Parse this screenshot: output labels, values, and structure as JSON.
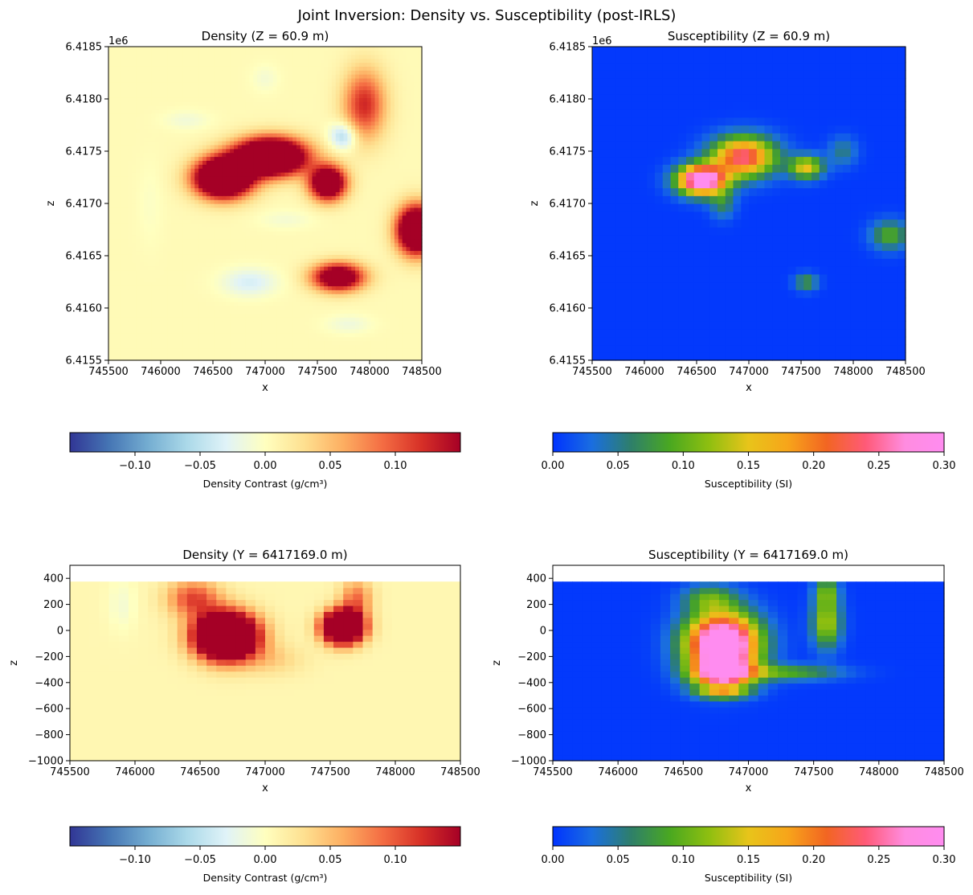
{
  "figure": {
    "suptitle": "Joint Inversion: Density vs. Susceptibility (post-IRLS)"
  },
  "colors": {
    "density_cmap": [
      "#313695",
      "#4575b4",
      "#74add1",
      "#abd9e9",
      "#e0f3f8",
      "#ffffbf",
      "#fee090",
      "#fdae61",
      "#f46d43",
      "#d73027",
      "#a50026"
    ],
    "susceptibility_cmap": [
      "#0033ff",
      "#1a6ee0",
      "#2e7f6a",
      "#4aa820",
      "#8fbf10",
      "#e8c41a",
      "#f7a51a",
      "#f26522",
      "#ff5a78",
      "#ff8ce0",
      "#ff8cf0"
    ],
    "background_empty": "#ffffff"
  },
  "chart_data": [
    {
      "id": "density-plan",
      "type": "heatmap",
      "title": "Density (Z = 60.9 m)",
      "xlabel": "x",
      "ylabel": "z",
      "offset_label": "1e6",
      "xlim": [
        745500,
        748500
      ],
      "ylim": [
        6415500,
        6418500
      ],
      "xticks": [
        "745500",
        "746000",
        "746500",
        "747000",
        "747500",
        "748000",
        "748500"
      ],
      "yticks": [
        "6.4155",
        "6.4160",
        "6.4165",
        "6.4170",
        "6.4175",
        "6.4180",
        "6.4185"
      ],
      "colormap": "density",
      "clim": [
        -0.15,
        0.15
      ],
      "grid": [
        80,
        80
      ],
      "background_value": 0.005,
      "anomalies": [
        {
          "x": 746600,
          "y": 6417250,
          "sx": 260,
          "sy": 180,
          "value": 0.35
        },
        {
          "x": 747050,
          "y": 6417450,
          "sx": 330,
          "sy": 170,
          "value": 0.35
        },
        {
          "x": 747600,
          "y": 6417200,
          "sx": 170,
          "sy": 160,
          "value": 0.25
        },
        {
          "x": 747950,
          "y": 6417950,
          "sx": 200,
          "sy": 330,
          "value": 0.12
        },
        {
          "x": 747750,
          "y": 6417650,
          "sx": 130,
          "sy": 130,
          "value": -0.07
        },
        {
          "x": 748450,
          "y": 6416750,
          "sx": 180,
          "sy": 220,
          "value": 0.3
        },
        {
          "x": 747700,
          "y": 6416300,
          "sx": 240,
          "sy": 130,
          "value": 0.22
        },
        {
          "x": 746850,
          "y": 6416250,
          "sx": 260,
          "sy": 130,
          "value": -0.04
        },
        {
          "x": 747800,
          "y": 6415850,
          "sx": 220,
          "sy": 90,
          "value": -0.02
        },
        {
          "x": 746250,
          "y": 6417800,
          "sx": 220,
          "sy": 90,
          "value": -0.018
        },
        {
          "x": 747000,
          "y": 6418200,
          "sx": 130,
          "sy": 130,
          "value": -0.015
        },
        {
          "x": 747200,
          "y": 6416850,
          "sx": 260,
          "sy": 90,
          "value": -0.015
        },
        {
          "x": 745900,
          "y": 6417000,
          "sx": 120,
          "sy": 400,
          "value": -0.008
        }
      ],
      "colorbar": {
        "label": "Density Contrast (g/cm³)",
        "ticks": [
          -0.1,
          -0.05,
          0.0,
          0.05,
          0.1
        ],
        "tick_labels": [
          "−0.10",
          "−0.05",
          "0.00",
          "0.05",
          "0.10"
        ]
      }
    },
    {
      "id": "susceptibility-plan",
      "type": "heatmap",
      "title": "Susceptibility (Z = 60.9 m)",
      "xlabel": "x",
      "ylabel": "z",
      "offset_label": "1e6",
      "xlim": [
        745500,
        748500
      ],
      "ylim": [
        6415500,
        6418500
      ],
      "xticks": [
        "745500",
        "746000",
        "746500",
        "747000",
        "747500",
        "748000",
        "748500"
      ],
      "yticks": [
        "6.4155",
        "6.4160",
        "6.4165",
        "6.4170",
        "6.4175",
        "6.4180",
        "6.4185"
      ],
      "colormap": "susceptibility",
      "clim": [
        0,
        0.3
      ],
      "grid": [
        40,
        40
      ],
      "background_value": 0.003,
      "anomalies": [
        {
          "x": 746550,
          "y": 6417230,
          "sx": 230,
          "sy": 140,
          "value": 0.33
        },
        {
          "x": 746950,
          "y": 6417450,
          "sx": 300,
          "sy": 190,
          "value": 0.24
        },
        {
          "x": 747550,
          "y": 6417350,
          "sx": 160,
          "sy": 110,
          "value": 0.15
        },
        {
          "x": 747900,
          "y": 6417500,
          "sx": 140,
          "sy": 140,
          "value": 0.05
        },
        {
          "x": 748350,
          "y": 6416700,
          "sx": 180,
          "sy": 140,
          "value": 0.09
        },
        {
          "x": 747550,
          "y": 6416250,
          "sx": 110,
          "sy": 80,
          "value": 0.08
        },
        {
          "x": 746750,
          "y": 6417000,
          "sx": 120,
          "sy": 140,
          "value": 0.06
        }
      ],
      "colorbar": {
        "label": "Susceptibility (SI)",
        "ticks": [
          0.0,
          0.05,
          0.1,
          0.15,
          0.2,
          0.25,
          0.3
        ],
        "tick_labels": [
          "0.00",
          "0.05",
          "0.10",
          "0.15",
          "0.20",
          "0.25",
          "0.30"
        ]
      }
    },
    {
      "id": "density-section",
      "type": "heatmap",
      "title": "Density (Y = 6417169.0 m)",
      "xlabel": "x",
      "ylabel": "z",
      "offset_label": "",
      "xlim": [
        745500,
        748500
      ],
      "ylim": [
        -1000,
        500
      ],
      "data_top": 375,
      "xticks": [
        "745500",
        "746000",
        "746500",
        "747000",
        "747500",
        "748000",
        "748500"
      ],
      "yticks": [
        "−1000",
        "−800",
        "−600",
        "−400",
        "−200",
        "0",
        "200",
        "400"
      ],
      "ytick_values": [
        -1000,
        -800,
        -600,
        -400,
        -200,
        0,
        200,
        400
      ],
      "colormap": "density",
      "clim": [
        -0.15,
        0.15
      ],
      "grid": [
        40,
        30
      ],
      "background_value": 0.008,
      "anomalies": [
        {
          "x": 746700,
          "y": -40,
          "sx": 230,
          "sy": 170,
          "value": 0.4
        },
        {
          "x": 747600,
          "y": 30,
          "sx": 150,
          "sy": 120,
          "value": 0.38
        },
        {
          "x": 746450,
          "y": 250,
          "sx": 200,
          "sy": 140,
          "value": 0.1
        },
        {
          "x": 747700,
          "y": 250,
          "sx": 120,
          "sy": 140,
          "value": 0.08
        },
        {
          "x": 747050,
          "y": -220,
          "sx": 250,
          "sy": 120,
          "value": 0.03
        },
        {
          "x": 745900,
          "y": 200,
          "sx": 110,
          "sy": 200,
          "value": -0.018
        }
      ],
      "colorbar": {
        "label": "Density Contrast (g/cm³)",
        "ticks": [
          -0.1,
          -0.05,
          0.0,
          0.05,
          0.1
        ],
        "tick_labels": [
          "−0.10",
          "−0.05",
          "0.00",
          "0.05",
          "0.10"
        ]
      }
    },
    {
      "id": "susceptibility-section",
      "type": "heatmap",
      "title": "Susceptibility (Y = 6417169.0 m)",
      "xlabel": "x",
      "ylabel": "z",
      "offset_label": "",
      "xlim": [
        745500,
        748500
      ],
      "ylim": [
        -1000,
        500
      ],
      "data_top": 375,
      "xticks": [
        "745500",
        "746000",
        "746500",
        "747000",
        "747500",
        "748000",
        "748500"
      ],
      "yticks": [
        "−1000",
        "−800",
        "−600",
        "−400",
        "−200",
        "0",
        "200",
        "400"
      ],
      "ytick_values": [
        -1000,
        -800,
        -600,
        -400,
        -200,
        0,
        200,
        400
      ],
      "colormap": "susceptibility",
      "clim": [
        0,
        0.3
      ],
      "grid": [
        40,
        30
      ],
      "background_value": 0.003,
      "anomalies": [
        {
          "x": 746800,
          "y": -100,
          "sx": 270,
          "sy": 230,
          "value": 0.38
        },
        {
          "x": 746800,
          "y": -330,
          "sx": 230,
          "sy": 110,
          "value": 0.22
        },
        {
          "x": 747300,
          "y": -320,
          "sx": 400,
          "sy": 60,
          "value": 0.09
        },
        {
          "x": 747600,
          "y": 60,
          "sx": 110,
          "sy": 190,
          "value": 0.13
        },
        {
          "x": 747600,
          "y": 300,
          "sx": 90,
          "sy": 110,
          "value": 0.09
        },
        {
          "x": 746700,
          "y": 250,
          "sx": 200,
          "sy": 100,
          "value": 0.08
        },
        {
          "x": 746800,
          "y": -480,
          "sx": 200,
          "sy": 40,
          "value": 0.12
        }
      ],
      "colorbar": {
        "label": "Susceptibility (SI)",
        "ticks": [
          0.0,
          0.05,
          0.1,
          0.15,
          0.2,
          0.25,
          0.3
        ],
        "tick_labels": [
          "0.00",
          "0.05",
          "0.10",
          "0.15",
          "0.20",
          "0.25",
          "0.30"
        ]
      }
    }
  ]
}
